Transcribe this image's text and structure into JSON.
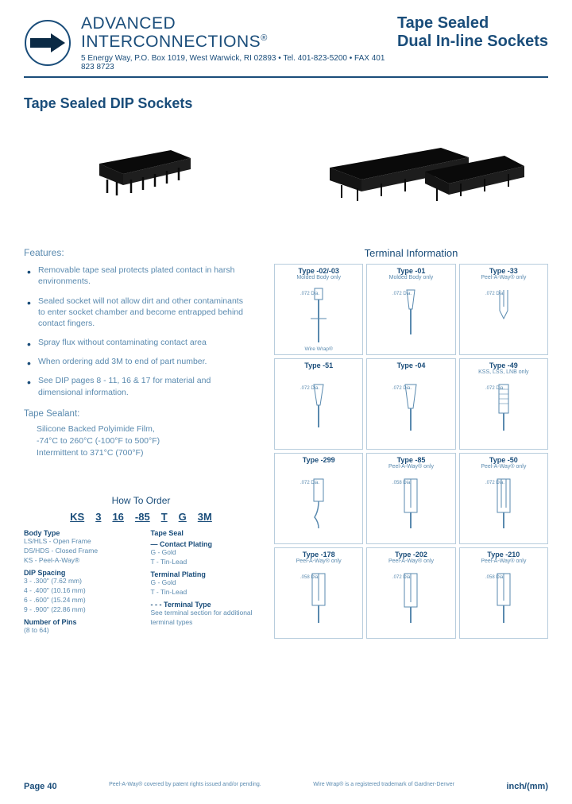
{
  "header": {
    "company_line1": "ADVANCED",
    "company_line2": "INTERCONNECTIONS",
    "reg": "®",
    "address": "5 Energy Way, P.O. Box 1019, West Warwick, RI 02893   •   Tel. 401-823-5200   •   FAX 401 823 8723",
    "title_line1": "Tape Sealed",
    "title_line2": "Dual In-line Sockets"
  },
  "section_title": "Tape Sealed DIP Sockets",
  "features_heading": "Features:",
  "features": [
    "Removable tape seal protects plated contact in harsh environments.",
    "Sealed socket will not allow dirt and other contaminants to enter socket chamber and become entrapped behind contact fingers.",
    "Spray flux without contaminating contact area",
    "When ordering add 3M to end of part number.",
    "See DIP pages 8 - 11, 16 & 17 for material and dimensional information."
  ],
  "tape_sealant": {
    "heading": "Tape Sealant:",
    "body": "Silicone Backed Polyimide Film,\n-74°C to 260°C (-100°F to 500°F)\nIntermittent to 371°C (700°F)"
  },
  "how_to_order": {
    "heading": "How To Order",
    "code": [
      "KS",
      "3",
      "16",
      "-85",
      "T",
      "G",
      "3M"
    ],
    "body_type": {
      "label": "Body Type",
      "items": [
        "LS/HLS - Open Frame",
        "DS/HDS - Closed Frame",
        "KS - Peel-A-Way®"
      ]
    },
    "dip_spacing": {
      "label": "DIP Spacing",
      "items": [
        "3 - .300\" (7.62 mm)",
        "4 - .400\" (10.16 mm)",
        "6 - .600\" (15.24 mm)",
        "9 - .900\" (22.86 mm)"
      ]
    },
    "num_pins": {
      "label": "Number of Pins",
      "items": [
        "(8 to 64)"
      ]
    },
    "tape_seal": {
      "label": "Tape Seal"
    },
    "contact_plating": {
      "label": "— Contact Plating",
      "items": [
        "G - Gold",
        "T - Tin-Lead"
      ]
    },
    "terminal_plating": {
      "label": "Terminal Plating",
      "items": [
        "G - Gold",
        "T - Tin-Lead"
      ]
    },
    "terminal_type": {
      "label": "- - - Terminal Type",
      "items": [
        "See terminal section for additional terminal types"
      ]
    }
  },
  "terminal_info": {
    "heading": "Terminal Information",
    "cells": [
      {
        "type": "Type -02/-03",
        "sub": "Molded Body only",
        "foot": "Wire Wrap®"
      },
      {
        "type": "Type -01",
        "sub": "Molded Body only",
        "foot": ""
      },
      {
        "type": "Type -33",
        "sub": "Peel-A-Way® only",
        "foot": ""
      },
      {
        "type": "Type -51",
        "sub": "",
        "foot": ""
      },
      {
        "type": "Type -04",
        "sub": "",
        "foot": ""
      },
      {
        "type": "Type -49",
        "sub": "KSS, LSS, LNB only",
        "foot": ""
      },
      {
        "type": "Type -299",
        "sub": "",
        "foot": ""
      },
      {
        "type": "Type -85",
        "sub": "Peel-A-Way® only",
        "foot": ""
      },
      {
        "type": "Type -50",
        "sub": "Peel-A-Way® only",
        "foot": ""
      },
      {
        "type": "Type -178",
        "sub": "Peel-A-Way® only",
        "foot": ""
      },
      {
        "type": "Type -202",
        "sub": "Peel-A-Way® only",
        "foot": ""
      },
      {
        "type": "Type -210",
        "sub": "Peel-A-Way® only",
        "foot": ""
      }
    ]
  },
  "footer": {
    "page": "Page 40",
    "note1": "Peel-A-Way® covered by patent rights issued and/or pending.",
    "note2": "Wire Wrap® is a registered trademark of Gardner-Denver",
    "unit": "inch/(mm)"
  },
  "colors": {
    "primary": "#1a4d7a",
    "muted": "#5a8aaf",
    "border": "#b8cddd"
  }
}
